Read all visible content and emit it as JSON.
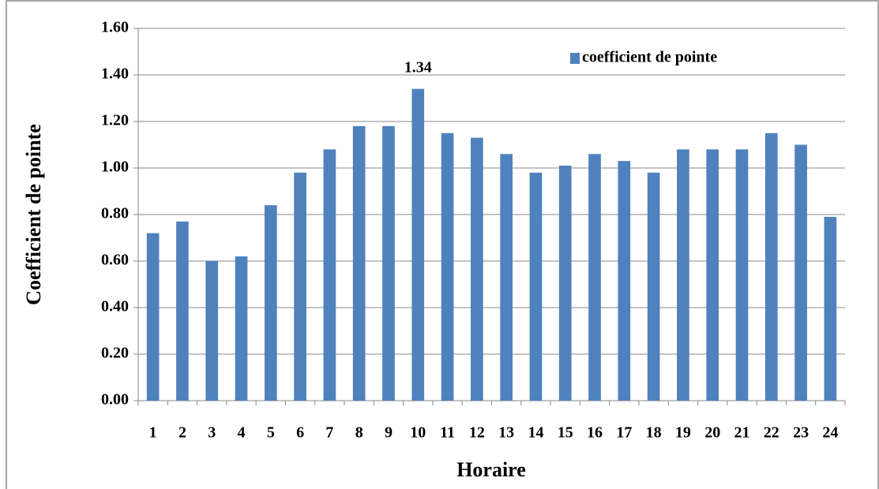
{
  "chart_data": {
    "type": "bar",
    "x_label": "Horaire",
    "y_label": "Coefficient de pointe",
    "categories": [
      "1",
      "2",
      "3",
      "4",
      "5",
      "6",
      "7",
      "8",
      "9",
      "10",
      "11",
      "12",
      "13",
      "14",
      "15",
      "16",
      "17",
      "18",
      "19",
      "20",
      "21",
      "22",
      "23",
      "24"
    ],
    "series": [
      {
        "name": "coefficient de pointe",
        "color": "#4f81bd",
        "values": [
          0.72,
          0.77,
          0.6,
          0.62,
          0.84,
          0.98,
          1.08,
          1.18,
          1.18,
          1.34,
          1.15,
          1.13,
          1.06,
          0.98,
          1.01,
          1.06,
          1.03,
          0.98,
          1.08,
          1.08,
          1.08,
          1.15,
          1.1,
          0.79
        ],
        "value_labels": [
          null,
          null,
          null,
          null,
          null,
          null,
          null,
          null,
          null,
          "1.34",
          null,
          null,
          null,
          null,
          null,
          null,
          null,
          null,
          null,
          null,
          null,
          null,
          null,
          null
        ]
      }
    ],
    "ylim": [
      0,
      1.6
    ],
    "yticks": [
      {
        "value": 0,
        "label": "0.00"
      },
      {
        "value": 0.2,
        "label": "0.20"
      },
      {
        "value": 0.4,
        "label": "0.40"
      },
      {
        "value": 0.6,
        "label": "0.60"
      },
      {
        "value": 0.8,
        "label": "0.80"
      },
      {
        "value": 1.0,
        "label": "1.00"
      },
      {
        "value": 1.2,
        "label": "1.20"
      },
      {
        "value": 1.4,
        "label": "1.40"
      },
      {
        "value": 1.6,
        "label": "1.60"
      }
    ],
    "grid": true,
    "legend": "top-right"
  }
}
